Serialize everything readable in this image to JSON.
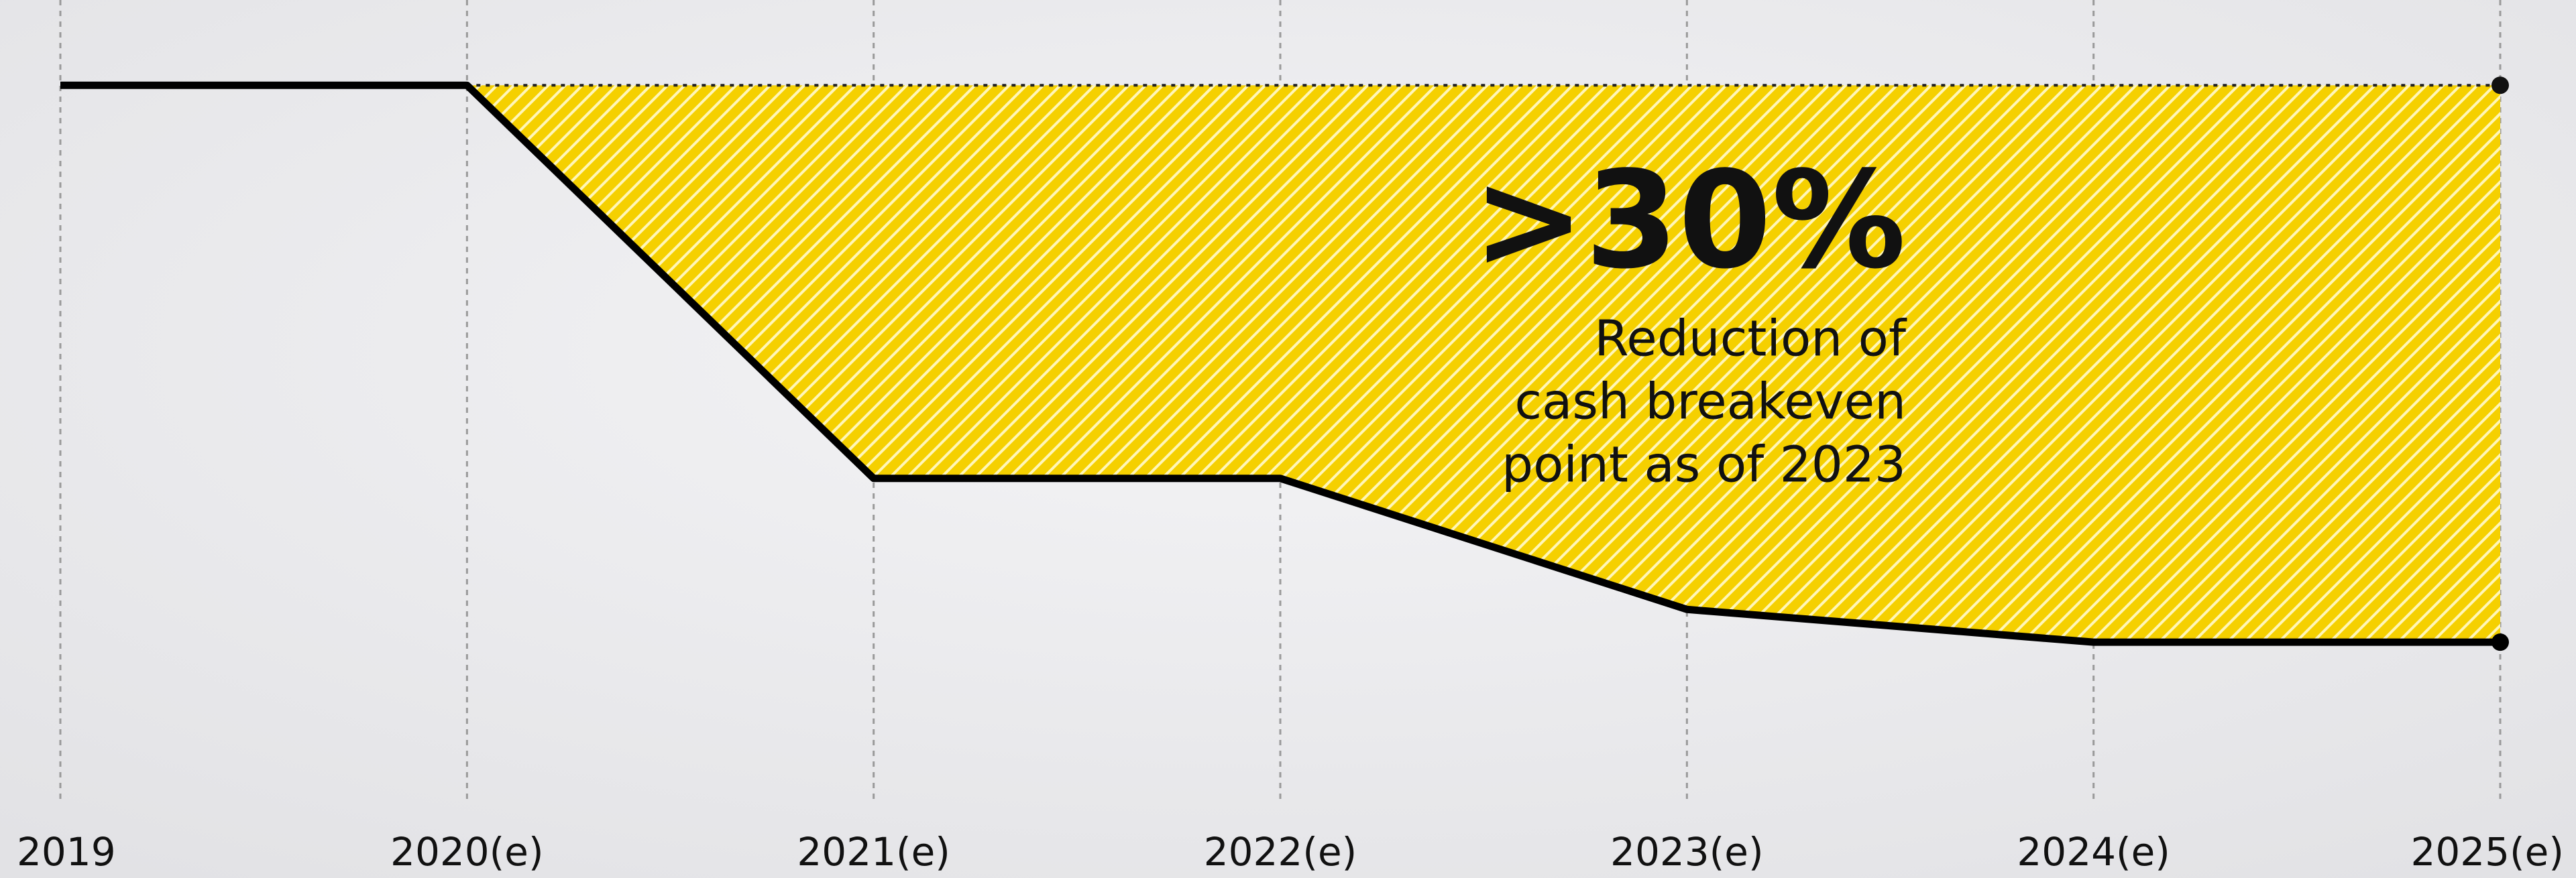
{
  "chart_data": {
    "type": "line",
    "categories": [
      "2019",
      "2020(e)",
      "2021(e)",
      "2022(e)",
      "2023(e)",
      "2024(e)",
      "2025(e)"
    ],
    "series": [
      {
        "color": "#000000",
        "values": [
          100,
          100,
          76,
          76,
          68,
          66,
          66
        ]
      }
    ],
    "fill_color": "#f5d000",
    "ylim": [
      55,
      105
    ],
    "grid": true,
    "annotation": {
      "headline": ">30%",
      "note": [
        "Reduction of",
        "cash breakeven",
        "point as of 2023"
      ]
    }
  }
}
